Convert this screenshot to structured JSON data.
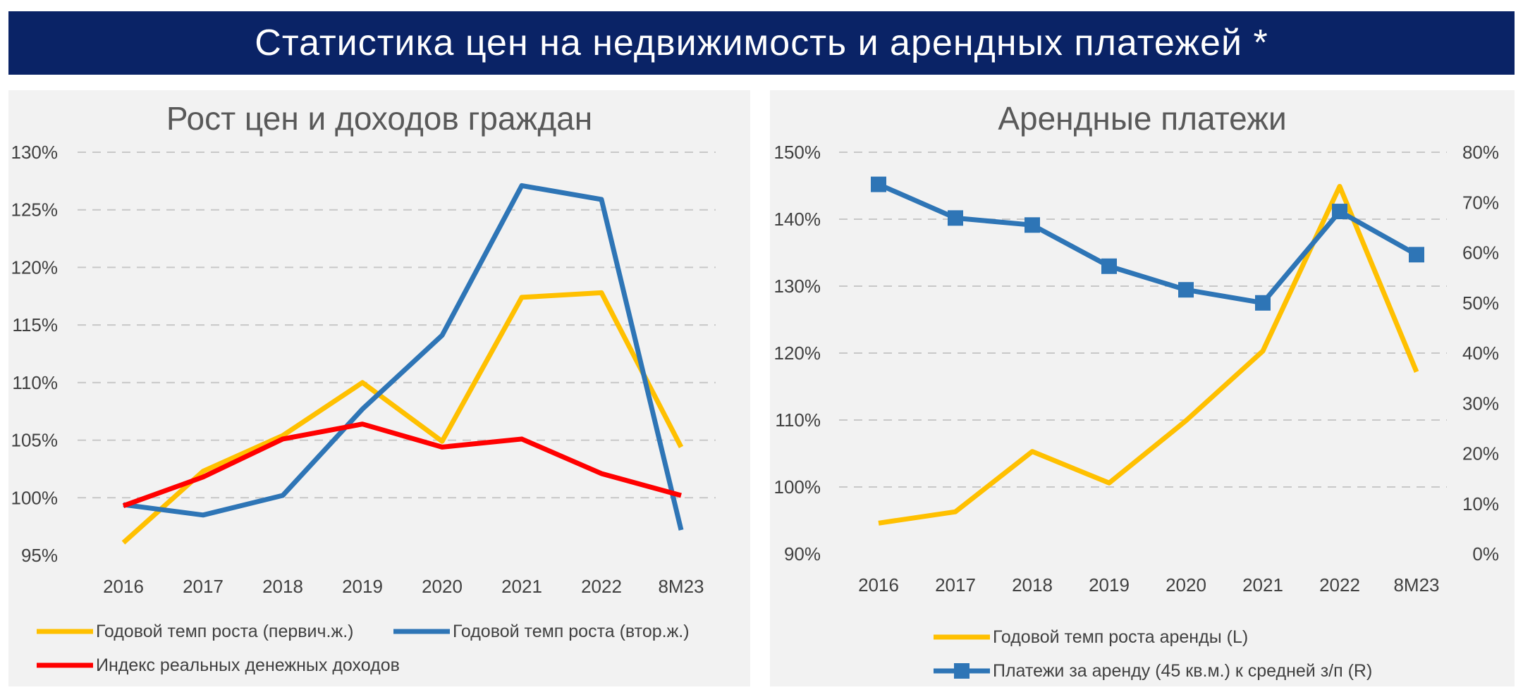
{
  "header": {
    "title": "Статистика цен на недвижимость и арендных платежей *"
  },
  "chart_data": [
    {
      "type": "line",
      "title": "Рост цен и доходов граждан",
      "categories": [
        "2016",
        "2017",
        "2018",
        "2019",
        "2020",
        "2021",
        "2022",
        "8М23"
      ],
      "y_ticks": [
        "95%",
        "100%",
        "105%",
        "110%",
        "115%",
        "120%",
        "125%",
        "130%"
      ],
      "ylim": [
        95,
        130
      ],
      "grid": true,
      "legend_position": "bottom",
      "series": [
        {
          "name": "Годовой темп роста (первич.ж.)",
          "color": "#ffc000",
          "values": [
            96.1,
            102.3,
            105.4,
            110.0,
            104.9,
            117.4,
            117.8,
            104.4
          ]
        },
        {
          "name": "Годовой темп роста (втор.ж.)",
          "color": "#2e75b6",
          "values": [
            99.4,
            98.5,
            100.2,
            107.7,
            114.1,
            127.1,
            125.9,
            97.2
          ]
        },
        {
          "name": "Индекс реальных денежных доходов",
          "color": "#ff0000",
          "values": [
            99.3,
            101.8,
            105.1,
            106.4,
            104.4,
            105.1,
            102.1,
            100.2
          ]
        }
      ]
    },
    {
      "type": "line",
      "title": "Арендные платежи",
      "categories": [
        "2016",
        "2017",
        "2018",
        "2019",
        "2020",
        "2021",
        "2022",
        "8М23"
      ],
      "y_ticks_left": [
        "90%",
        "100%",
        "110%",
        "120%",
        "130%",
        "140%",
        "150%"
      ],
      "y_ticks_right": [
        "0%",
        "10%",
        "20%",
        "30%",
        "40%",
        "50%",
        "60%",
        "70%",
        "80%"
      ],
      "ylim_left": [
        90,
        150
      ],
      "ylim_right": [
        0,
        80
      ],
      "grid": true,
      "legend_position": "bottom",
      "series": [
        {
          "name": "Годовой темп роста аренды (L)",
          "axis": "left",
          "color": "#ffc000",
          "values": [
            94.6,
            96.3,
            105.3,
            100.6,
            109.9,
            120.3,
            144.9,
            117.2
          ]
        },
        {
          "name": "Платежи за аренду (45 кв.м.) к средней з/п (R)",
          "axis": "right",
          "color": "#2e75b6",
          "marker": "square",
          "values": [
            73.6,
            66.9,
            65.5,
            57.3,
            52.6,
            50.0,
            68.2,
            59.6
          ]
        }
      ]
    }
  ]
}
